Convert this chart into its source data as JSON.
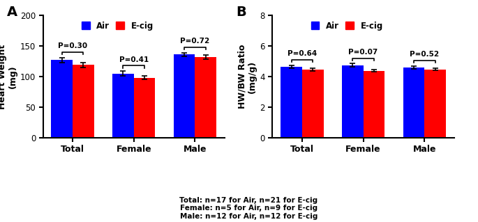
{
  "panel_A": {
    "title": "A",
    "ylabel": "Heart Weight\n(mg)",
    "ylim": [
      0,
      200
    ],
    "yticks": [
      0,
      50,
      100,
      150,
      200
    ],
    "categories": [
      "Total",
      "Female",
      "Male"
    ],
    "air_values": [
      127,
      105,
      136
    ],
    "ecig_values": [
      119,
      98,
      132
    ],
    "air_errors": [
      4,
      4,
      3
    ],
    "ecig_errors": [
      4,
      3,
      3
    ],
    "pvalues": [
      "P=0.30",
      "P=0.41",
      "P=0.72"
    ],
    "bar_width": 0.35,
    "air_color": "#0000FF",
    "ecig_color": "#FF0000"
  },
  "panel_B": {
    "title": "B",
    "ylabel": "HW/BW Ratio\n(mg/g)",
    "ylim": [
      0,
      8
    ],
    "yticks": [
      0,
      2,
      4,
      6,
      8
    ],
    "categories": [
      "Total",
      "Female",
      "Male"
    ],
    "air_values": [
      4.65,
      4.75,
      4.6
    ],
    "ecig_values": [
      4.45,
      4.38,
      4.48
    ],
    "air_errors": [
      0.1,
      0.1,
      0.1
    ],
    "ecig_errors": [
      0.1,
      0.07,
      0.08
    ],
    "pvalues": [
      "P=0.64",
      "P=0.07",
      "P=0.52"
    ],
    "bar_width": 0.35,
    "air_color": "#0000FF",
    "ecig_color": "#FF0000"
  },
  "legend_labels": [
    "Air",
    "E-cig"
  ],
  "footnote_lines": [
    "Total: n=17 for Air, n=21 for E-cig",
    "Female: n=5 for Air, n=9 for E-cig",
    "Male: n=12 for Air, n=12 for E-cig"
  ],
  "figsize": [
    6.85,
    3.19
  ],
  "dpi": 100
}
